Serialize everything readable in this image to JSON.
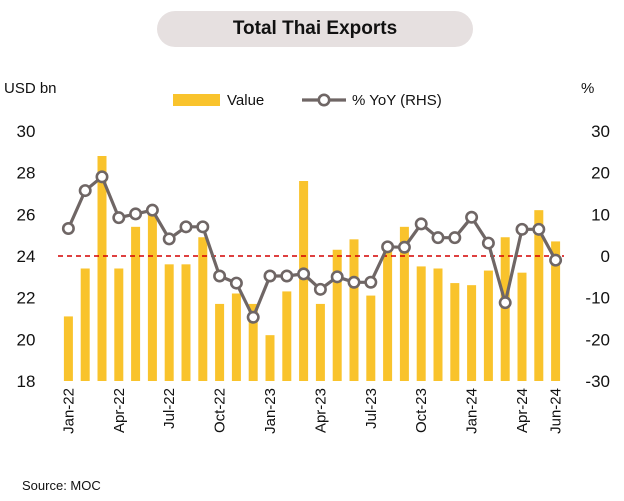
{
  "title": "Total Thai Exports",
  "left_unit": "USD bn",
  "right_unit": "%",
  "source": "Source:  MOC",
  "colors": {
    "bar": "#f9c32c",
    "line": "#6f6665",
    "zero_line": "#d40000",
    "title_bg": "#e6e0e0"
  },
  "chart_data": {
    "type": "bar+line",
    "categories": [
      "Jan-22",
      "Feb-22",
      "Mar-22",
      "Apr-22",
      "May-22",
      "Jun-22",
      "Jul-22",
      "Aug-22",
      "Sep-22",
      "Oct-22",
      "Nov-22",
      "Dec-22",
      "Jan-23",
      "Feb-23",
      "Mar-23",
      "Apr-23",
      "May-23",
      "Jun-23",
      "Jul-23",
      "Aug-23",
      "Sep-23",
      "Oct-23",
      "Nov-23",
      "Dec-23",
      "Jan-24",
      "Feb-24",
      "Mar-24",
      "Apr-24",
      "May-24",
      "Jun-24"
    ],
    "x_tick_labels": [
      "Jan-22",
      "Apr-22",
      "Jul-22",
      "Oct-22",
      "Jan-23",
      "Apr-23",
      "Jul-23",
      "Oct-23",
      "Jan-24",
      "Apr-24",
      "Jun-24"
    ],
    "series": [
      {
        "name": "Value",
        "type": "bar",
        "axis": "left",
        "values": [
          21.1,
          23.4,
          28.8,
          23.4,
          25.4,
          26.1,
          23.6,
          23.6,
          24.9,
          21.7,
          22.2,
          21.7,
          20.2,
          22.3,
          27.6,
          21.7,
          24.3,
          24.8,
          22.1,
          24.3,
          25.4,
          23.5,
          23.4,
          22.7,
          22.6,
          23.3,
          24.9,
          23.2,
          26.2,
          24.7
        ]
      },
      {
        "name": "% YoY (RHS)",
        "type": "line",
        "axis": "right",
        "values": [
          6.6,
          15.7,
          19.0,
          9.2,
          10.1,
          11.0,
          4.1,
          7.0,
          7.0,
          -4.8,
          -6.5,
          -14.7,
          -4.8,
          -4.8,
          -4.3,
          -8.0,
          -5.0,
          -6.3,
          -6.3,
          2.2,
          2.1,
          7.7,
          4.4,
          4.4,
          9.3,
          3.1,
          -11.2,
          6.4,
          6.4,
          -1.0
        ]
      }
    ],
    "y_left": {
      "min": 18,
      "max": 30,
      "ticks": [
        18,
        20,
        22,
        24,
        26,
        28,
        30
      ]
    },
    "y_right": {
      "min": -30,
      "max": 30,
      "ticks": [
        -30,
        -20,
        -10,
        0,
        10,
        20,
        30
      ]
    },
    "reference_line": {
      "axis": "right",
      "value": 0,
      "style": "dashed"
    },
    "legend": {
      "placement": "top-center",
      "items": [
        "Value",
        "% YoY (RHS)"
      ]
    },
    "grid": false
  }
}
